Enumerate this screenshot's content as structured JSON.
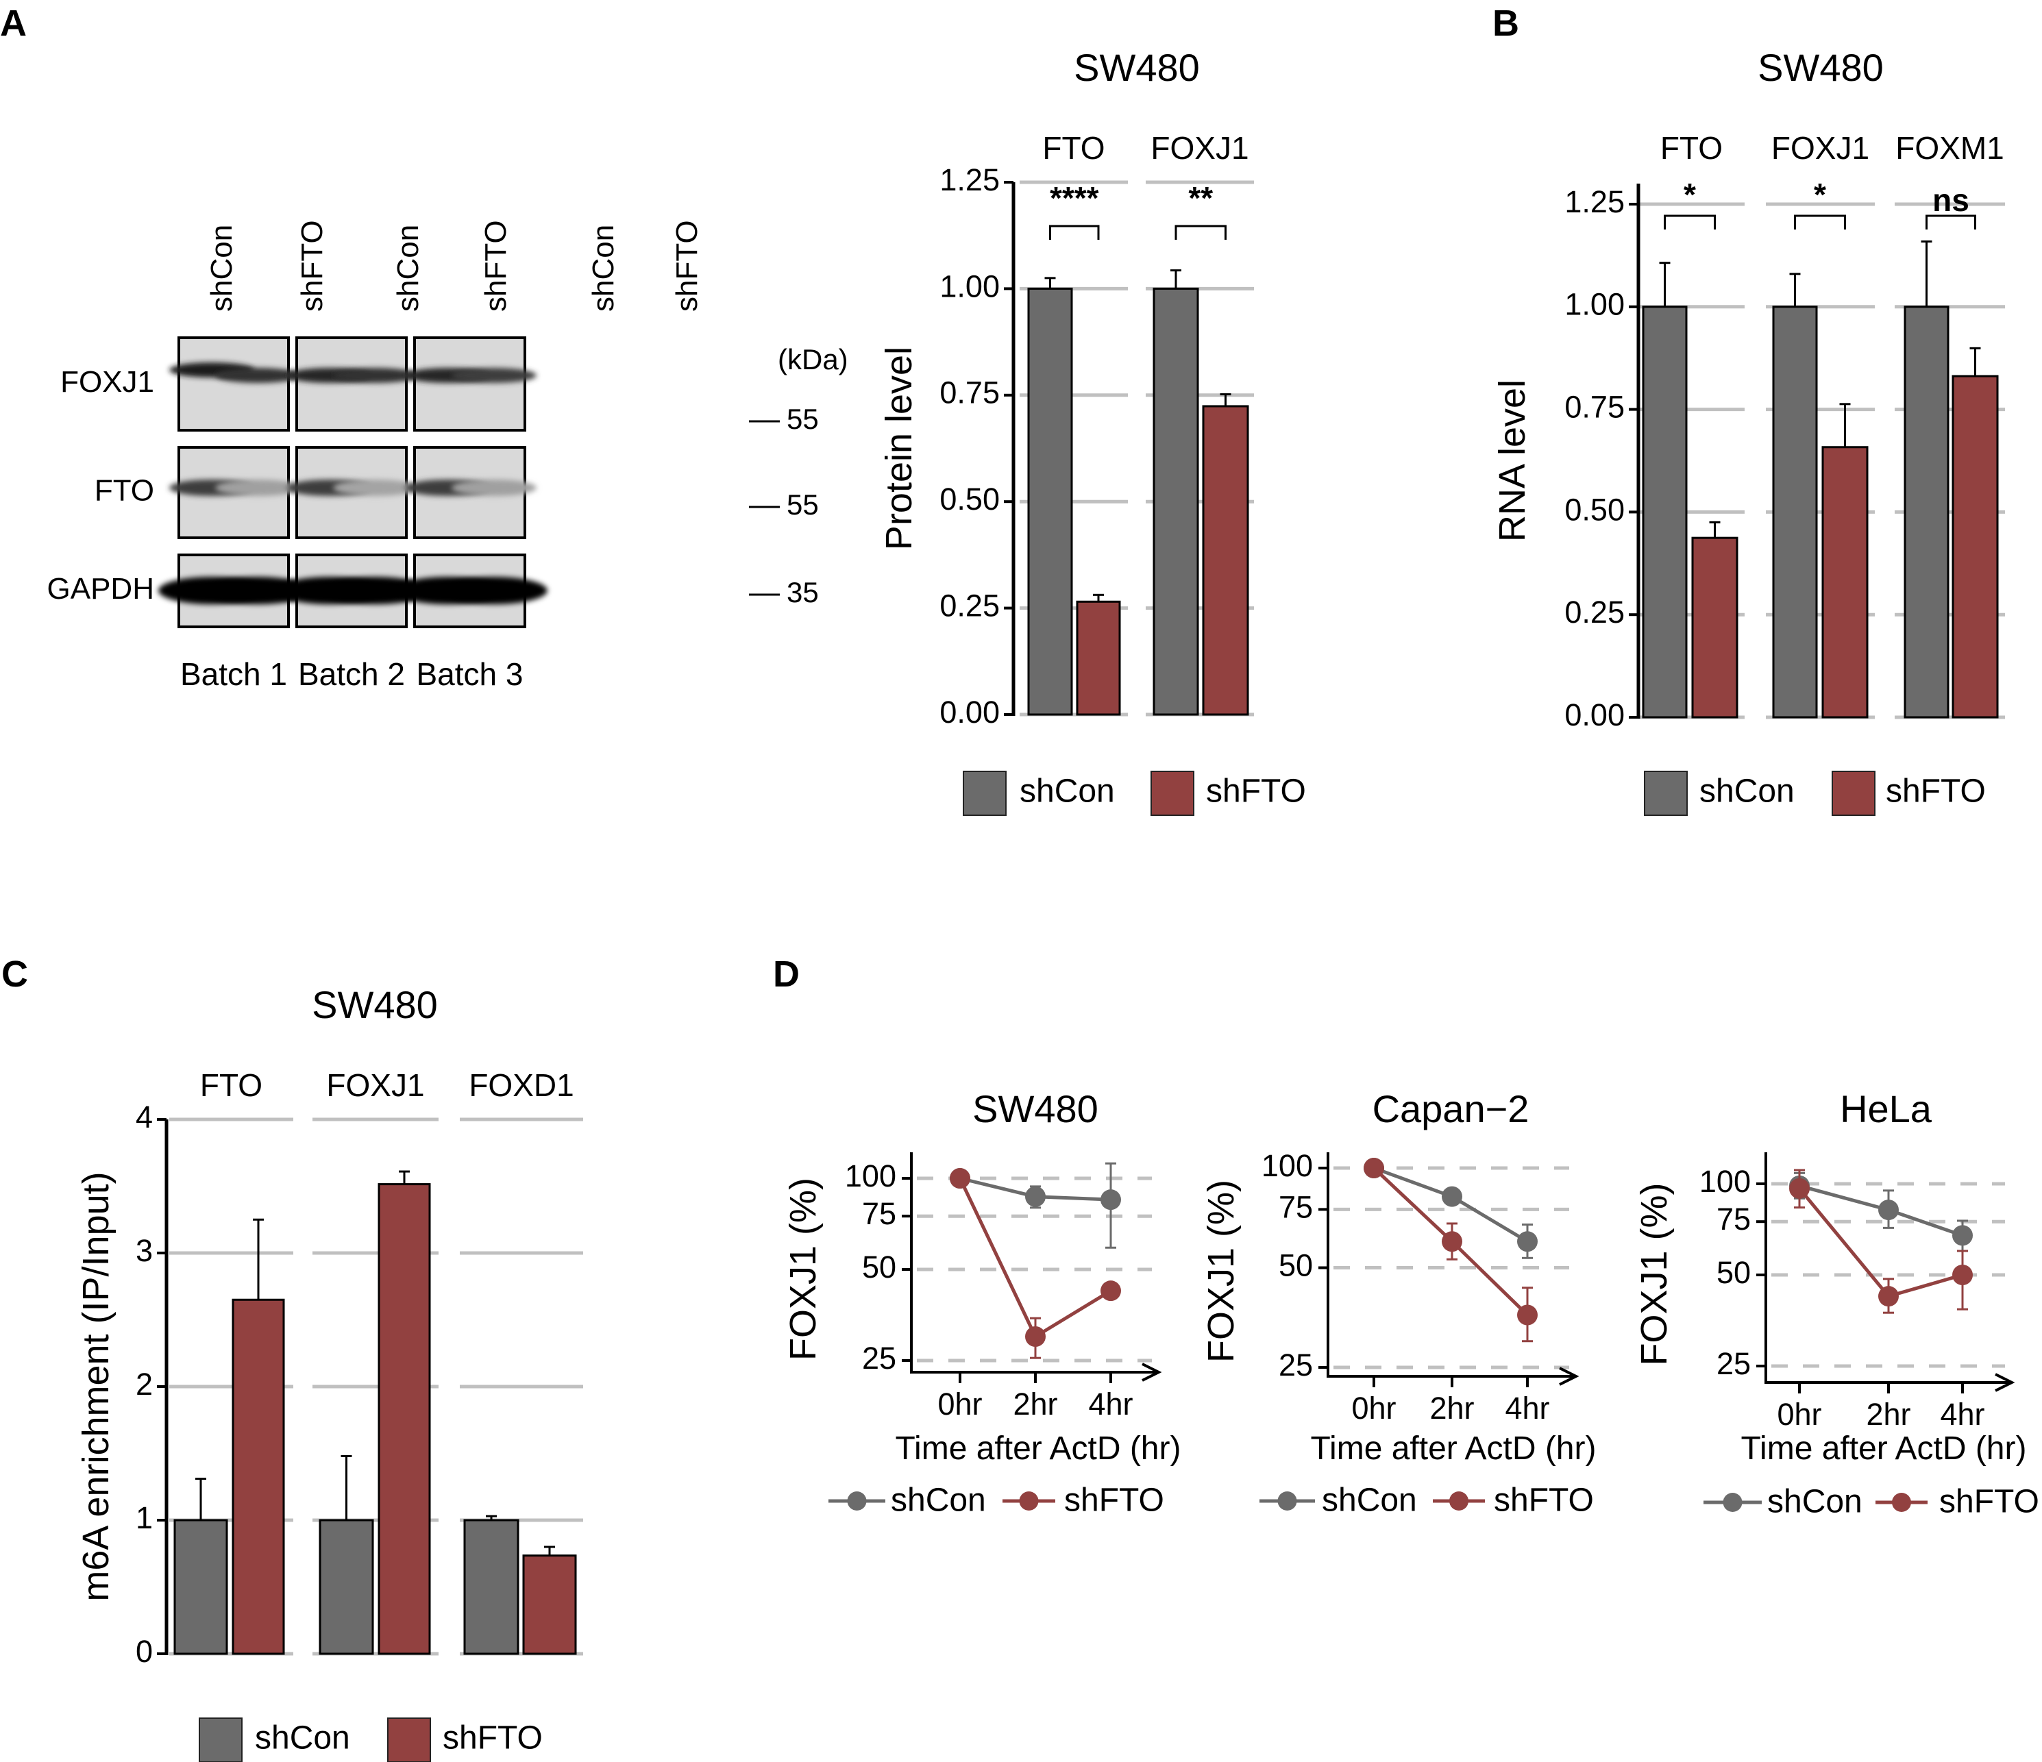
{
  "figure": {
    "panel_letters": [
      "A",
      "B",
      "C",
      "D"
    ],
    "colors": {
      "shCon": "#6b6b6b",
      "shFTO": "#924140",
      "grid": "#c0c0c0",
      "blot_bg": "#d9d9d9"
    }
  },
  "blot": {
    "lane_labels": [
      "shCon",
      "shFTO",
      "shCon",
      "shFTO",
      "shCon",
      "shFTO"
    ],
    "row_labels": [
      "FOXJ1",
      "FTO",
      "GAPDH"
    ],
    "batch_labels": [
      "Batch 1",
      "Batch 2",
      "Batch 3"
    ],
    "kda_header": "(kDa)",
    "markers": [
      "55",
      "55",
      "35"
    ],
    "band_intensity": {
      "FOXJ1": [
        0.85,
        0.75,
        0.8,
        0.75,
        0.8,
        0.7
      ],
      "FTO": [
        0.7,
        0.2,
        0.7,
        0.18,
        0.7,
        0.2
      ],
      "GAPDH": [
        1.0,
        1.0,
        1.0,
        1.0,
        1.0,
        1.0
      ]
    }
  },
  "chart_data": [
    {
      "id": "A",
      "type": "bar",
      "title": "SW480",
      "ylabel": "Protein level",
      "xlabel": "",
      "ylim": [
        0,
        1.25
      ],
      "yticks": [
        "0.00",
        "0.25",
        "0.50",
        "0.75",
        "1.00",
        "1.25"
      ],
      "ytick_values": [
        0,
        0.25,
        0.5,
        0.75,
        1.0,
        1.25
      ],
      "grid": true,
      "legend": {
        "position": "bottom",
        "entries": [
          "shCon",
          "shFTO"
        ]
      },
      "categories": [
        "FTO",
        "FOXJ1"
      ],
      "series": [
        {
          "name": "shCon",
          "values": [
            1.0,
            1.0
          ],
          "error_upper": [
            1.025,
            1.043
          ]
        },
        {
          "name": "shFTO",
          "values": [
            0.265,
            0.724
          ],
          "error_upper": [
            0.281,
            0.752
          ]
        }
      ],
      "significance": [
        "****",
        "**"
      ]
    },
    {
      "id": "B",
      "type": "bar",
      "title": "SW480",
      "ylabel": "RNA level",
      "xlabel": "",
      "ylim": [
        0,
        1.25
      ],
      "yticks": [
        "0.00",
        "0.25",
        "0.50",
        "0.75",
        "1.00",
        "1.25"
      ],
      "ytick_values": [
        0,
        0.25,
        0.5,
        0.75,
        1.0,
        1.25
      ],
      "grid": true,
      "legend": {
        "position": "bottom",
        "entries": [
          "shCon",
          "shFTO"
        ]
      },
      "categories": [
        "FTO",
        "FOXJ1",
        "FOXM1"
      ],
      "series": [
        {
          "name": "shCon",
          "values": [
            1.0,
            1.0,
            1.0
          ],
          "error_upper": [
            1.107,
            1.08,
            1.159
          ]
        },
        {
          "name": "shFTO",
          "values": [
            0.437,
            0.658,
            0.831
          ],
          "error_upper": [
            0.475,
            0.763,
            0.899
          ]
        }
      ],
      "significance": [
        "*",
        "*",
        "ns"
      ]
    },
    {
      "id": "C",
      "type": "bar",
      "title": "SW480",
      "ylabel": "m6A enrichment (IP/Input)",
      "xlabel": "",
      "ylim": [
        0,
        4
      ],
      "yticks": [
        "0",
        "1",
        "2",
        "3",
        "4"
      ],
      "ytick_values": [
        0,
        1,
        2,
        3,
        4
      ],
      "grid": true,
      "legend": {
        "position": "bottom",
        "entries": [
          "shCon",
          "shFTO"
        ]
      },
      "categories": [
        "FTO",
        "FOXJ1",
        "FOXD1"
      ],
      "series": [
        {
          "name": "shCon",
          "values": [
            1.0,
            1.0,
            1.0
          ],
          "error_upper": [
            1.31,
            1.48,
            1.03
          ]
        },
        {
          "name": "shFTO",
          "values": [
            2.65,
            3.515,
            0.735
          ],
          "error_upper": [
            3.25,
            3.61,
            0.8
          ]
        }
      ]
    },
    {
      "id": "D1",
      "type": "line",
      "title": "SW480",
      "ylabel": "FOXJ1 (%)",
      "xlabel": "Time after ActD (hr)",
      "yscale": "log",
      "yticks": [
        "25",
        "50",
        "75",
        "100"
      ],
      "ytick_values": [
        25,
        50,
        75,
        100
      ],
      "x": [
        "0hr",
        "2hr",
        "4hr"
      ],
      "grid": true,
      "legend": {
        "position": "bottom",
        "entries": [
          "shCon",
          "shFTO"
        ]
      },
      "series": [
        {
          "name": "shCon",
          "values": [
            100,
            87,
            85
          ],
          "error_low": [
            100,
            80,
            59
          ],
          "error_high": [
            100,
            94,
            112
          ]
        },
        {
          "name": "shFTO",
          "values": [
            100,
            30,
            42.5
          ],
          "error_low": [
            100,
            25.5,
            42.5
          ],
          "error_high": [
            100,
            34.5,
            42.5
          ]
        }
      ]
    },
    {
      "id": "D2",
      "type": "line",
      "title": "Capan−2",
      "ylabel": "FOXJ1 (%)",
      "xlabel": "Time after ActD (hr)",
      "yscale": "log",
      "yticks": [
        "25",
        "50",
        "75",
        "100"
      ],
      "ytick_values": [
        25,
        50,
        75,
        100
      ],
      "x": [
        "0hr",
        "2hr",
        "4hr"
      ],
      "grid": true,
      "legend": {
        "position": "bottom",
        "entries": [
          "shCon",
          "shFTO"
        ]
      },
      "series": [
        {
          "name": "shCon",
          "values": [
            100,
            82,
            60
          ],
          "error_low": [
            100,
            82,
            53.5
          ],
          "error_high": [
            100,
            82,
            67.5
          ]
        },
        {
          "name": "shFTO",
          "values": [
            100,
            60,
            36
          ],
          "error_low": [
            100,
            53,
            30
          ],
          "error_high": [
            100,
            68,
            43.5
          ]
        }
      ]
    },
    {
      "id": "D3",
      "type": "line",
      "title": "HeLa",
      "ylabel": "FOXJ1 (%)",
      "xlabel": "Time after ActD (hr)",
      "yscale": "log",
      "yticks": [
        "25",
        "50",
        "75",
        "100"
      ],
      "ytick_values": [
        25,
        50,
        75,
        100
      ],
      "x": [
        "0hr",
        "2hr",
        "4hr"
      ],
      "grid": true,
      "legend": {
        "position": "bottom",
        "entries": [
          "shCon",
          "shFTO"
        ]
      },
      "series": [
        {
          "name": "shCon",
          "values": [
            98.5,
            82,
            67.5
          ],
          "error_low": [
            89.5,
            71.5,
            60
          ],
          "error_high": [
            108.5,
            95,
            75.5
          ]
        },
        {
          "name": "shFTO",
          "values": [
            96.5,
            42.5,
            50
          ],
          "error_low": [
            83.5,
            37.5,
            38.5
          ],
          "error_high": [
            111,
            48.5,
            60
          ]
        }
      ]
    }
  ]
}
